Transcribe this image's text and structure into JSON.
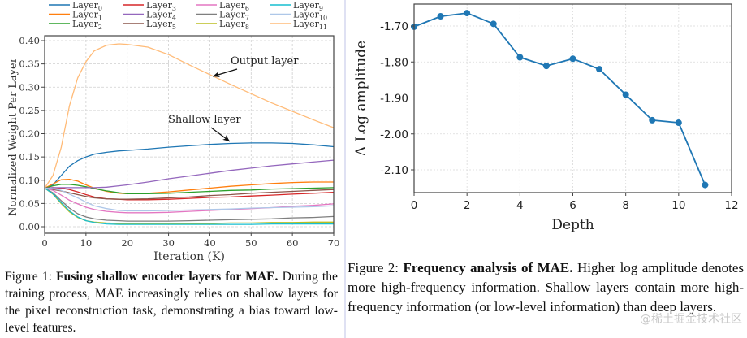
{
  "chart_data": [
    {
      "type": "line",
      "title": "",
      "xlabel": "Iteration (K)",
      "ylabel": "Normalized Weight Per Layer",
      "xlim": [
        0,
        70
      ],
      "ylim": [
        -0.01,
        0.41
      ],
      "xticks": [
        0,
        10,
        20,
        30,
        40,
        50,
        60,
        70
      ],
      "yticks": [
        0.0,
        0.05,
        0.1,
        0.15,
        0.2,
        0.25,
        0.3,
        0.35,
        0.4
      ],
      "ytick_labels": [
        "0.00",
        "0.05",
        "0.10",
        "0.15",
        "0.20",
        "0.25",
        "0.30",
        "0.35",
        "0.40"
      ],
      "grid": true,
      "legend_position": "top (above plot, 4 columns)",
      "x": [
        0,
        2,
        4,
        6,
        8,
        10,
        12,
        15,
        18,
        20,
        25,
        30,
        35,
        40,
        45,
        50,
        55,
        60,
        65,
        70
      ],
      "series": [
        {
          "name": "Layer",
          "sub": "0",
          "color": "#1f77b4",
          "values": [
            0.083,
            0.09,
            0.11,
            0.13,
            0.142,
            0.15,
            0.156,
            0.16,
            0.163,
            0.164,
            0.167,
            0.171,
            0.174,
            0.177,
            0.179,
            0.18,
            0.18,
            0.179,
            0.176,
            0.172
          ]
        },
        {
          "name": "Layer",
          "sub": "1",
          "color": "#ff7f0e",
          "values": [
            0.083,
            0.092,
            0.101,
            0.102,
            0.098,
            0.09,
            0.083,
            0.076,
            0.072,
            0.071,
            0.072,
            0.075,
            0.079,
            0.083,
            0.087,
            0.09,
            0.093,
            0.095,
            0.096,
            0.096
          ]
        },
        {
          "name": "Layer",
          "sub": "2",
          "color": "#2ca02c",
          "values": [
            0.083,
            0.088,
            0.091,
            0.091,
            0.089,
            0.086,
            0.082,
            0.077,
            0.073,
            0.071,
            0.071,
            0.072,
            0.074,
            0.076,
            0.078,
            0.079,
            0.081,
            0.082,
            0.083,
            0.084
          ]
        },
        {
          "name": "Layer",
          "sub": "3",
          "color": "#d62728",
          "values": [
            0.083,
            0.084,
            0.083,
            0.08,
            0.075,
            0.069,
            0.064,
            0.06,
            0.059,
            0.058,
            0.058,
            0.059,
            0.061,
            0.063,
            0.064,
            0.066,
            0.068,
            0.07,
            0.072,
            0.074
          ]
        },
        {
          "name": "Layer",
          "sub": "4",
          "color": "#9467bd",
          "values": [
            0.083,
            0.084,
            0.084,
            0.084,
            0.084,
            0.084,
            0.084,
            0.085,
            0.088,
            0.09,
            0.096,
            0.103,
            0.109,
            0.115,
            0.121,
            0.126,
            0.131,
            0.135,
            0.139,
            0.143
          ]
        },
        {
          "name": "Layer",
          "sub": "5",
          "color": "#8c564b",
          "values": [
            0.083,
            0.08,
            0.077,
            0.073,
            0.069,
            0.065,
            0.062,
            0.06,
            0.059,
            0.059,
            0.06,
            0.062,
            0.064,
            0.067,
            0.069,
            0.072,
            0.074,
            0.076,
            0.078,
            0.08
          ]
        },
        {
          "name": "Layer",
          "sub": "6",
          "color": "#e377c2",
          "values": [
            0.083,
            0.078,
            0.068,
            0.057,
            0.049,
            0.042,
            0.037,
            0.033,
            0.031,
            0.03,
            0.03,
            0.031,
            0.033,
            0.035,
            0.037,
            0.039,
            0.041,
            0.044,
            0.046,
            0.049
          ]
        },
        {
          "name": "Layer",
          "sub": "7",
          "color": "#7f7f7f",
          "values": [
            0.083,
            0.073,
            0.056,
            0.04,
            0.028,
            0.021,
            0.017,
            0.014,
            0.013,
            0.012,
            0.012,
            0.012,
            0.013,
            0.014,
            0.015,
            0.016,
            0.017,
            0.019,
            0.02,
            0.022
          ]
        },
        {
          "name": "Layer",
          "sub": "8",
          "color": "#bcbd22",
          "values": [
            0.083,
            0.07,
            0.05,
            0.032,
            0.02,
            0.013,
            0.01,
            0.008,
            0.007,
            0.007,
            0.007,
            0.007,
            0.007,
            0.007,
            0.008,
            0.008,
            0.009,
            0.009,
            0.01,
            0.01
          ]
        },
        {
          "name": "Layer",
          "sub": "9",
          "color": "#17becf",
          "values": [
            0.083,
            0.071,
            0.052,
            0.034,
            0.021,
            0.013,
            0.009,
            0.006,
            0.005,
            0.005,
            0.005,
            0.005,
            0.005,
            0.005,
            0.005,
            0.005,
            0.006,
            0.006,
            0.006,
            0.006
          ]
        },
        {
          "name": "Layer",
          "sub": "10",
          "color": "#aec7e8",
          "values": [
            0.083,
            0.082,
            0.078,
            0.07,
            0.062,
            0.053,
            0.045,
            0.039,
            0.035,
            0.034,
            0.034,
            0.035,
            0.036,
            0.037,
            0.038,
            0.04,
            0.041,
            0.042,
            0.043,
            0.045
          ]
        },
        {
          "name": "Layer",
          "sub": "11",
          "color": "#ffbb78",
          "values": [
            0.083,
            0.11,
            0.17,
            0.26,
            0.32,
            0.355,
            0.378,
            0.39,
            0.393,
            0.392,
            0.386,
            0.37,
            0.348,
            0.327,
            0.306,
            0.286,
            0.266,
            0.248,
            0.23,
            0.213
          ]
        }
      ],
      "annotations": [
        {
          "text": "Output layer",
          "points_to": {
            "x": 41.5,
            "y": 0.31
          }
        },
        {
          "text": "Shallow layer",
          "points_to": {
            "x": 45,
            "y": 0.181
          }
        }
      ]
    },
    {
      "type": "line",
      "title": "",
      "xlabel": "Depth",
      "ylabel": "Δ Log amplitude",
      "xlim": [
        0,
        12
      ],
      "ylim": [
        -2.165,
        -1.64
      ],
      "xticks": [
        0,
        2,
        4,
        6,
        8,
        10,
        12
      ],
      "yticks": [
        -1.7,
        -1.8,
        -1.9,
        -2.0,
        -2.1
      ],
      "ytick_labels": [
        "-1.70",
        "-1.80",
        "-1.90",
        "-2.00",
        "-2.10"
      ],
      "grid": true,
      "x": [
        0,
        1,
        2,
        3,
        4,
        5,
        6,
        7,
        8,
        9,
        10,
        11
      ],
      "series": [
        {
          "name": "MAE",
          "color": "#1f77b4",
          "marker": "circle",
          "values": [
            -1.702,
            -1.673,
            -1.664,
            -1.694,
            -1.787,
            -1.811,
            -1.791,
            -1.82,
            -1.891,
            -1.962,
            -1.969,
            -2.142
          ]
        }
      ]
    }
  ],
  "captions": {
    "figure1": {
      "label": "Figure 1:",
      "bold": "Fusing shallow encoder layers for MAE.",
      "text": "During the training process, MAE increasingly relies on shallow layers for the pixel reconstruction task, demonstrating a bias toward low-level features."
    },
    "figure2": {
      "label": "Figure 2:",
      "bold": "Frequency analysis of MAE.",
      "text": "Higher log amplitude denotes more high-frequency information. Shallow layers contain more high-frequency information (or low-level information) than deep layers."
    }
  },
  "watermark": "@稀土掘金技术社区"
}
